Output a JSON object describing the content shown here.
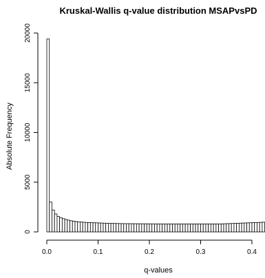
{
  "chart_data": {
    "type": "bar",
    "title": "Kruskal-Wallis q-value distribution MSAPvsPD",
    "xlabel": "q-values",
    "ylabel": "Absolute Frequency",
    "bin_width": 0.005,
    "x_start": 0.0,
    "xlim": [
      0.0,
      0.42
    ],
    "ylim": [
      0,
      20000
    ],
    "x_ticks": [
      0.0,
      0.1,
      0.2,
      0.3,
      0.4
    ],
    "x_tick_labels": [
      "0.0",
      "0.1",
      "0.2",
      "0.3",
      "0.4"
    ],
    "y_ticks": [
      0,
      5000,
      10000,
      15000,
      20000
    ],
    "y_tick_labels": [
      "0",
      "5000",
      "10000",
      "15000",
      "20000"
    ],
    "values": [
      19400,
      3000,
      2200,
      1800,
      1550,
      1420,
      1330,
      1250,
      1180,
      1120,
      1080,
      1040,
      1010,
      990,
      970,
      950,
      940,
      930,
      920,
      910,
      900,
      890,
      880,
      870,
      860,
      855,
      850,
      845,
      840,
      835,
      830,
      828,
      826,
      824,
      822,
      820,
      818,
      816,
      814,
      812,
      810,
      808,
      806,
      804,
      802,
      800,
      800,
      800,
      800,
      800,
      800,
      800,
      800,
      800,
      800,
      800,
      800,
      800,
      800,
      800,
      800,
      800,
      800,
      800,
      800,
      800,
      800,
      800,
      810,
      820,
      830,
      840,
      850,
      860,
      870,
      880,
      890,
      900,
      910,
      920,
      930,
      940,
      950,
      960,
      980
    ]
  }
}
